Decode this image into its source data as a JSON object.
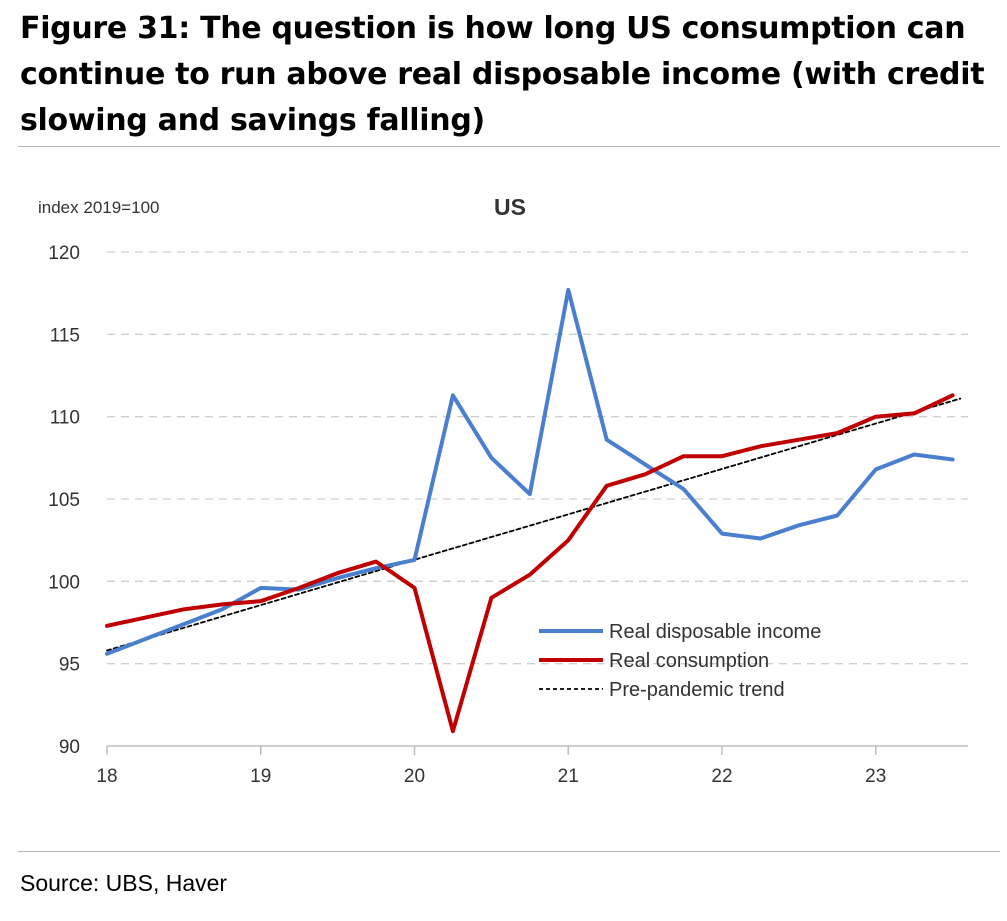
{
  "figure": {
    "title": "Figure 31: The question is how long US consumption can continue to run above real disposable income (with credit slowing and savings falling)",
    "source": "Source: UBS, Haver"
  },
  "chart_data": {
    "type": "line",
    "title": "US",
    "ylabel": "index 2019=100",
    "xlabel": "",
    "ylim": [
      90,
      120
    ],
    "yticks": [
      90,
      95,
      100,
      105,
      110,
      115,
      120
    ],
    "xlim": [
      2018,
      2023.6
    ],
    "xticks": [
      {
        "value": 2018,
        "label": "18"
      },
      {
        "value": 2019,
        "label": "19"
      },
      {
        "value": 2020,
        "label": "20"
      },
      {
        "value": 2021,
        "label": "21"
      },
      {
        "value": 2022,
        "label": "22"
      },
      {
        "value": 2023,
        "label": "23"
      }
    ],
    "grid": "horizontal dashed",
    "legend_position": "lower-right",
    "x": [
      2018.0,
      2018.25,
      2018.5,
      2018.75,
      2019.0,
      2019.25,
      2019.5,
      2019.75,
      2020.0,
      2020.25,
      2020.5,
      2020.75,
      2021.0,
      2021.25,
      2021.5,
      2021.75,
      2022.0,
      2022.25,
      2022.5,
      2022.75,
      2023.0,
      2023.25,
      2023.5
    ],
    "series": [
      {
        "name": "Real disposable income",
        "color": "#4a7fcf",
        "style": "solid",
        "values": [
          95.6,
          96.5,
          97.4,
          98.3,
          99.6,
          99.5,
          100.2,
          100.8,
          101.3,
          111.3,
          107.5,
          105.3,
          117.7,
          108.6,
          107.1,
          105.6,
          102.9,
          102.6,
          103.4,
          104.0,
          106.8,
          107.7,
          107.4
        ]
      },
      {
        "name": "Real consumption",
        "color": "#c00000",
        "style": "solid",
        "values": [
          97.3,
          97.8,
          98.3,
          98.6,
          98.8,
          99.6,
          100.5,
          101.2,
          99.6,
          90.9,
          99.0,
          100.4,
          102.5,
          105.8,
          106.5,
          107.6,
          107.6,
          108.2,
          108.6,
          109.0,
          110.0,
          110.2,
          111.3
        ]
      },
      {
        "name": "Pre-pandemic trend",
        "color": "#000000",
        "style": "dashed",
        "x": [
          2018.0,
          2023.55
        ],
        "values": [
          95.8,
          111.1
        ]
      }
    ]
  }
}
